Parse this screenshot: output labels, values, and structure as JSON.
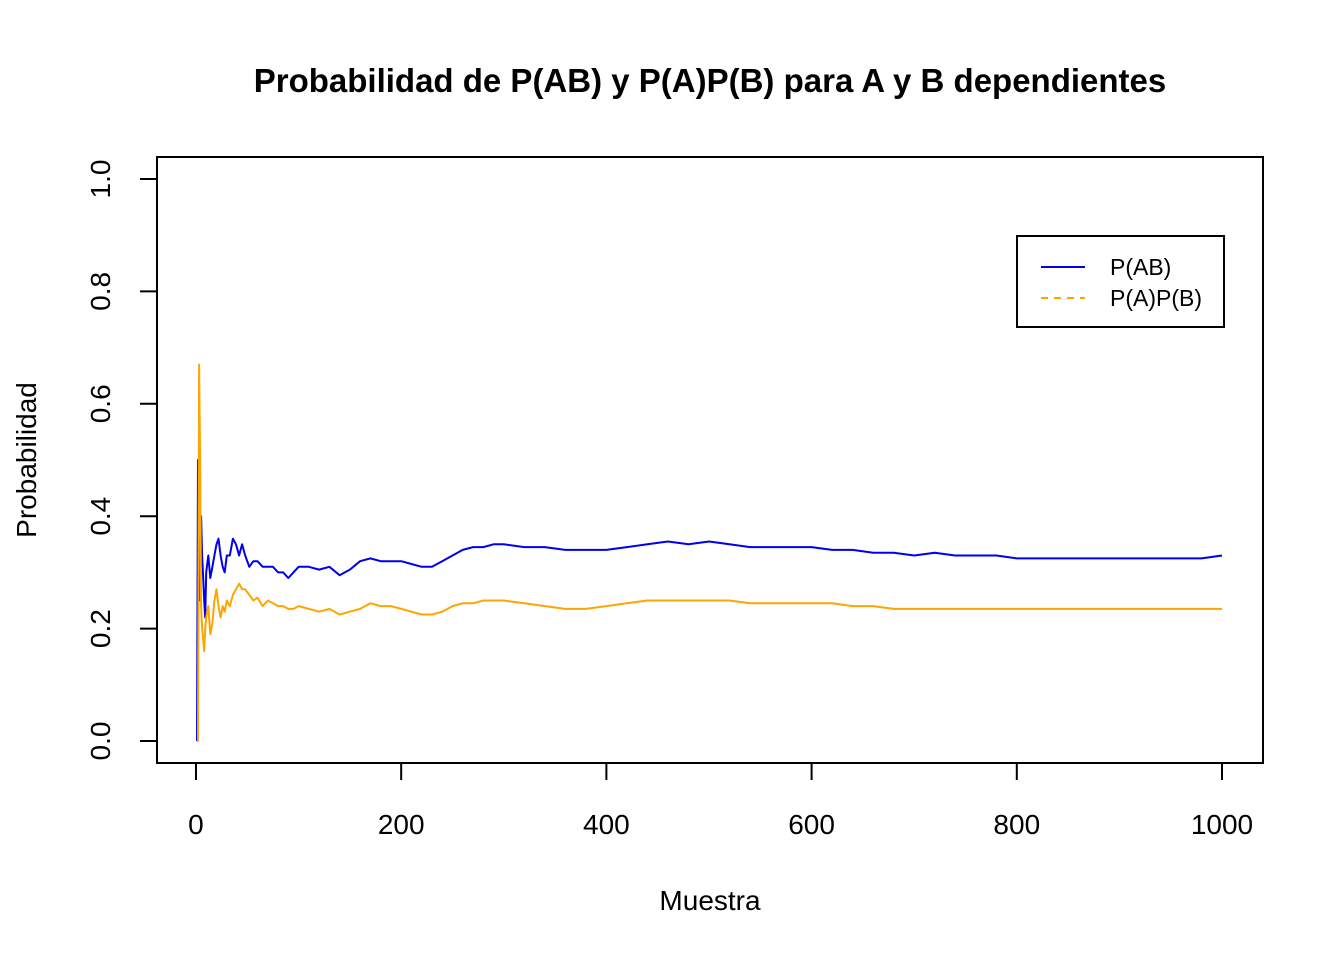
{
  "chart_data": {
    "type": "line",
    "title": "Probabilidad de P(AB) y P(A)P(B) para A y B dependientes",
    "xlabel": "Muestra",
    "ylabel": "Probabilidad",
    "xlim": [
      1,
      1000
    ],
    "ylim": [
      0,
      1
    ],
    "xticks": [
      0,
      200,
      400,
      600,
      800,
      1000
    ],
    "yticks": [
      0.0,
      0.2,
      0.4,
      0.6,
      0.8,
      1.0
    ],
    "xtick_labels": [
      "0",
      "200",
      "400",
      "600",
      "800",
      "1000"
    ],
    "ytick_labels": [
      "0.0",
      "0.2",
      "0.4",
      "0.6",
      "0.8",
      "1.0"
    ],
    "grid": false,
    "legend": {
      "position": "top-right",
      "entries": [
        {
          "name": "P(AB)",
          "color": "#0000EE",
          "style": "solid"
        },
        {
          "name": "P(A)P(B)",
          "color": "#FFA500",
          "style": "dashed"
        }
      ]
    },
    "series": [
      {
        "name": "P(AB)",
        "color": "#0000EE",
        "x": [
          1,
          2,
          3,
          4,
          5,
          6,
          7,
          8,
          9,
          10,
          12,
          14,
          16,
          18,
          20,
          22,
          24,
          26,
          28,
          30,
          33,
          36,
          39,
          42,
          45,
          48,
          52,
          56,
          60,
          65,
          70,
          75,
          80,
          85,
          90,
          95,
          100,
          110,
          120,
          130,
          140,
          150,
          160,
          170,
          180,
          190,
          200,
          210,
          220,
          230,
          240,
          250,
          260,
          270,
          280,
          290,
          300,
          320,
          340,
          360,
          380,
          400,
          420,
          440,
          460,
          480,
          500,
          520,
          540,
          560,
          580,
          600,
          620,
          640,
          660,
          680,
          700,
          720,
          740,
          760,
          780,
          800,
          820,
          840,
          860,
          880,
          900,
          920,
          940,
          960,
          980,
          1000
        ],
        "y": [
          0.0,
          0.5,
          0.33,
          0.25,
          0.4,
          0.33,
          0.29,
          0.25,
          0.22,
          0.3,
          0.33,
          0.29,
          0.31,
          0.33,
          0.35,
          0.36,
          0.33,
          0.31,
          0.3,
          0.33,
          0.33,
          0.36,
          0.35,
          0.33,
          0.35,
          0.33,
          0.31,
          0.32,
          0.32,
          0.31,
          0.31,
          0.31,
          0.3,
          0.3,
          0.29,
          0.3,
          0.31,
          0.31,
          0.305,
          0.31,
          0.295,
          0.305,
          0.32,
          0.325,
          0.32,
          0.32,
          0.32,
          0.315,
          0.31,
          0.31,
          0.32,
          0.33,
          0.34,
          0.345,
          0.345,
          0.35,
          0.35,
          0.345,
          0.345,
          0.34,
          0.34,
          0.34,
          0.345,
          0.35,
          0.355,
          0.35,
          0.355,
          0.35,
          0.345,
          0.345,
          0.345,
          0.345,
          0.34,
          0.34,
          0.335,
          0.335,
          0.33,
          0.335,
          0.33,
          0.33,
          0.33,
          0.325,
          0.325,
          0.325,
          0.325,
          0.325,
          0.325,
          0.325,
          0.325,
          0.325,
          0.325,
          0.33
        ]
      },
      {
        "name": "P(A)P(B)",
        "color": "#FFA500",
        "x": [
          1,
          2,
          3,
          4,
          5,
          6,
          7,
          8,
          9,
          10,
          12,
          14,
          16,
          18,
          20,
          22,
          24,
          26,
          28,
          30,
          33,
          36,
          39,
          42,
          45,
          48,
          52,
          56,
          60,
          65,
          70,
          75,
          80,
          85,
          90,
          95,
          100,
          110,
          120,
          130,
          140,
          150,
          160,
          170,
          180,
          190,
          200,
          210,
          220,
          230,
          240,
          250,
          260,
          270,
          280,
          290,
          300,
          320,
          340,
          360,
          380,
          400,
          420,
          440,
          460,
          480,
          500,
          520,
          540,
          560,
          580,
          600,
          620,
          640,
          660,
          680,
          700,
          720,
          740,
          760,
          780,
          800,
          820,
          840,
          860,
          880,
          900,
          920,
          940,
          960,
          980,
          1000
        ],
        "y": [
          0.0,
          0.0,
          0.67,
          0.5,
          0.24,
          0.2,
          0.18,
          0.16,
          0.2,
          0.22,
          0.24,
          0.19,
          0.21,
          0.25,
          0.27,
          0.24,
          0.22,
          0.24,
          0.23,
          0.25,
          0.24,
          0.26,
          0.27,
          0.28,
          0.27,
          0.27,
          0.26,
          0.25,
          0.255,
          0.24,
          0.25,
          0.245,
          0.24,
          0.24,
          0.235,
          0.235,
          0.24,
          0.235,
          0.23,
          0.235,
          0.225,
          0.23,
          0.235,
          0.245,
          0.24,
          0.24,
          0.235,
          0.23,
          0.225,
          0.225,
          0.23,
          0.24,
          0.245,
          0.245,
          0.25,
          0.25,
          0.25,
          0.245,
          0.24,
          0.235,
          0.235,
          0.24,
          0.245,
          0.25,
          0.25,
          0.25,
          0.25,
          0.25,
          0.245,
          0.245,
          0.245,
          0.245,
          0.245,
          0.24,
          0.24,
          0.235,
          0.235,
          0.235,
          0.235,
          0.235,
          0.235,
          0.235,
          0.235,
          0.235,
          0.235,
          0.235,
          0.235,
          0.235,
          0.235,
          0.235,
          0.235,
          0.235
        ]
      }
    ]
  }
}
